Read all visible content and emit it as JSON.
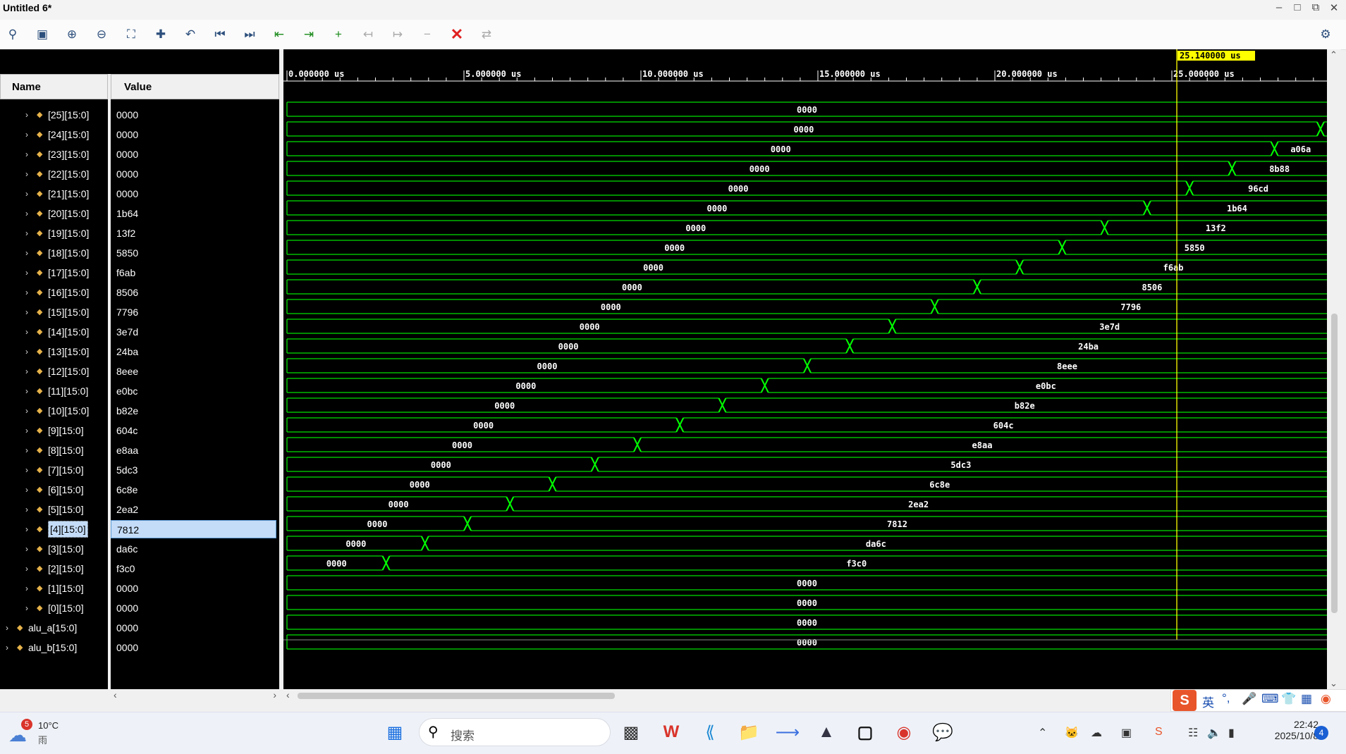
{
  "window": {
    "title": "Untitled 6*",
    "min_icon": "minimize-icon",
    "max_icon": "maximize-icon",
    "restore_icon": "restore-icon",
    "close_icon": "close-icon"
  },
  "toolbar": {
    "icons": [
      "search-icon",
      "save-icon",
      "zoom-in-icon",
      "zoom-out-icon",
      "zoom-fit-icon",
      "zoom-to-cursor-icon",
      "go-to-time-0-icon",
      "go-to-first-icon",
      "go-to-last-icon",
      "previous-transition-icon",
      "next-transition-icon",
      "add-marker-icon",
      "previous-marker-icon",
      "next-marker-icon",
      "delete-marker-icon",
      "remove-all-markers-icon",
      "swap-cursor-icon"
    ],
    "settings_icon": "gear-icon"
  },
  "columns": {
    "name": "Name",
    "value": "Value"
  },
  "cursor": {
    "time_label": "25.140000 us",
    "time_us": 25.14,
    "color": "#ffff00"
  },
  "time_axis": {
    "range_us": [
      0,
      29.5
    ],
    "ticks": [
      "0.000000 us",
      "5.000000 us",
      "10.000000 us",
      "15.000000 us",
      "20.000000 us",
      "25.000000 us"
    ],
    "tick_values_us": [
      0,
      5,
      10,
      15,
      20,
      25
    ]
  },
  "signals": [
    {
      "name": "[25][15:0]",
      "value": "0000",
      "indent": 1,
      "segments": [
        {
          "value": "0000",
          "start_us": 0,
          "end_us": 29.5
        }
      ]
    },
    {
      "name": "[24][15:0]",
      "value": "0000",
      "indent": 1,
      "segments": [
        {
          "value": "0000",
          "start_us": 0,
          "end_us": 29.2
        },
        {
          "value": "",
          "start_us": 29.2,
          "end_us": 29.5
        }
      ]
    },
    {
      "name": "[23][15:0]",
      "value": "0000",
      "indent": 1,
      "segments": [
        {
          "value": "0000",
          "start_us": 0,
          "end_us": 27.9
        },
        {
          "value": "a06a",
          "start_us": 27.9,
          "end_us": 29.5
        }
      ]
    },
    {
      "name": "[22][15:0]",
      "value": "0000",
      "indent": 1,
      "segments": [
        {
          "value": "0000",
          "start_us": 0,
          "end_us": 26.7
        },
        {
          "value": "8b88",
          "start_us": 26.7,
          "end_us": 29.5
        }
      ]
    },
    {
      "name": "[21][15:0]",
      "value": "0000",
      "indent": 1,
      "segments": [
        {
          "value": "0000",
          "start_us": 0,
          "end_us": 25.5
        },
        {
          "value": "96cd",
          "start_us": 25.5,
          "end_us": 29.5
        }
      ]
    },
    {
      "name": "[20][15:0]",
      "value": "1b64",
      "indent": 1,
      "segments": [
        {
          "value": "0000",
          "start_us": 0,
          "end_us": 24.3
        },
        {
          "value": "1b64",
          "start_us": 24.3,
          "end_us": 29.5
        }
      ]
    },
    {
      "name": "[19][15:0]",
      "value": "13f2",
      "indent": 1,
      "segments": [
        {
          "value": "0000",
          "start_us": 0,
          "end_us": 23.1
        },
        {
          "value": "13f2",
          "start_us": 23.1,
          "end_us": 29.5
        }
      ]
    },
    {
      "name": "[18][15:0]",
      "value": "5850",
      "indent": 1,
      "segments": [
        {
          "value": "0000",
          "start_us": 0,
          "end_us": 21.9
        },
        {
          "value": "5850",
          "start_us": 21.9,
          "end_us": 29.5
        }
      ]
    },
    {
      "name": "[17][15:0]",
      "value": "f6ab",
      "indent": 1,
      "segments": [
        {
          "value": "0000",
          "start_us": 0,
          "end_us": 20.7
        },
        {
          "value": "f6ab",
          "start_us": 20.7,
          "end_us": 29.5
        }
      ]
    },
    {
      "name": "[16][15:0]",
      "value": "8506",
      "indent": 1,
      "segments": [
        {
          "value": "0000",
          "start_us": 0,
          "end_us": 19.5
        },
        {
          "value": "8506",
          "start_us": 19.5,
          "end_us": 29.5
        }
      ]
    },
    {
      "name": "[15][15:0]",
      "value": "7796",
      "indent": 1,
      "segments": [
        {
          "value": "0000",
          "start_us": 0,
          "end_us": 18.3
        },
        {
          "value": "7796",
          "start_us": 18.3,
          "end_us": 29.5
        }
      ]
    },
    {
      "name": "[14][15:0]",
      "value": "3e7d",
      "indent": 1,
      "segments": [
        {
          "value": "0000",
          "start_us": 0,
          "end_us": 17.1
        },
        {
          "value": "3e7d",
          "start_us": 17.1,
          "end_us": 29.5
        }
      ]
    },
    {
      "name": "[13][15:0]",
      "value": "24ba",
      "indent": 1,
      "segments": [
        {
          "value": "0000",
          "start_us": 0,
          "end_us": 15.9
        },
        {
          "value": "24ba",
          "start_us": 15.9,
          "end_us": 29.5
        }
      ]
    },
    {
      "name": "[12][15:0]",
      "value": "8eee",
      "indent": 1,
      "segments": [
        {
          "value": "0000",
          "start_us": 0,
          "end_us": 14.7
        },
        {
          "value": "8eee",
          "start_us": 14.7,
          "end_us": 29.5
        }
      ]
    },
    {
      "name": "[11][15:0]",
      "value": "e0bc",
      "indent": 1,
      "segments": [
        {
          "value": "0000",
          "start_us": 0,
          "end_us": 13.5
        },
        {
          "value": "e0bc",
          "start_us": 13.5,
          "end_us": 29.5
        }
      ]
    },
    {
      "name": "[10][15:0]",
      "value": "b82e",
      "indent": 1,
      "segments": [
        {
          "value": "0000",
          "start_us": 0,
          "end_us": 12.3
        },
        {
          "value": "b82e",
          "start_us": 12.3,
          "end_us": 29.5
        }
      ]
    },
    {
      "name": "[9][15:0]",
      "value": "604c",
      "indent": 1,
      "segments": [
        {
          "value": "0000",
          "start_us": 0,
          "end_us": 11.1
        },
        {
          "value": "604c",
          "start_us": 11.1,
          "end_us": 29.5
        }
      ]
    },
    {
      "name": "[8][15:0]",
      "value": "e8aa",
      "indent": 1,
      "segments": [
        {
          "value": "0000",
          "start_us": 0,
          "end_us": 9.9
        },
        {
          "value": "e8aa",
          "start_us": 9.9,
          "end_us": 29.5
        }
      ]
    },
    {
      "name": "[7][15:0]",
      "value": "5dc3",
      "indent": 1,
      "segments": [
        {
          "value": "0000",
          "start_us": 0,
          "end_us": 8.7
        },
        {
          "value": "5dc3",
          "start_us": 8.7,
          "end_us": 29.5
        }
      ]
    },
    {
      "name": "[6][15:0]",
      "value": "6c8e",
      "indent": 1,
      "segments": [
        {
          "value": "0000",
          "start_us": 0,
          "end_us": 7.5
        },
        {
          "value": "6c8e",
          "start_us": 7.5,
          "end_us": 29.5
        }
      ]
    },
    {
      "name": "[5][15:0]",
      "value": "2ea2",
      "indent": 1,
      "segments": [
        {
          "value": "0000",
          "start_us": 0,
          "end_us": 6.3
        },
        {
          "value": "2ea2",
          "start_us": 6.3,
          "end_us": 29.5
        }
      ]
    },
    {
      "name": "[4][15:0]",
      "value": "7812",
      "indent": 1,
      "selected": true,
      "segments": [
        {
          "value": "0000",
          "start_us": 0,
          "end_us": 5.1
        },
        {
          "value": "7812",
          "start_us": 5.1,
          "end_us": 29.5
        }
      ]
    },
    {
      "name": "[3][15:0]",
      "value": "da6c",
      "indent": 1,
      "segments": [
        {
          "value": "0000",
          "start_us": 0,
          "end_us": 3.9
        },
        {
          "value": "da6c",
          "start_us": 3.9,
          "end_us": 29.5
        }
      ]
    },
    {
      "name": "[2][15:0]",
      "value": "f3c0",
      "indent": 1,
      "segments": [
        {
          "value": "0000",
          "start_us": 0,
          "end_us": 2.8
        },
        {
          "value": "f3c0",
          "start_us": 2.8,
          "end_us": 29.5
        }
      ]
    },
    {
      "name": "[1][15:0]",
      "value": "0000",
      "indent": 1,
      "segments": [
        {
          "value": "0000",
          "start_us": 0,
          "end_us": 29.5
        }
      ]
    },
    {
      "name": "[0][15:0]",
      "value": "0000",
      "indent": 1,
      "segments": [
        {
          "value": "0000",
          "start_us": 0,
          "end_us": 29.5
        }
      ]
    },
    {
      "name": "alu_a[15:0]",
      "value": "0000",
      "indent": 0,
      "segments": [
        {
          "value": "0000",
          "start_us": 0,
          "end_us": 29.5
        }
      ]
    },
    {
      "name": "alu_b[15:0]",
      "value": "0000",
      "indent": 0,
      "segments": [
        {
          "value": "0000",
          "start_us": 0,
          "end_us": 29.5
        }
      ]
    }
  ],
  "colors": {
    "wave": "#00e000",
    "wave_transition": "#00ff00",
    "cursor": "#ffff00",
    "selected_row": "#c4dcf7"
  },
  "taskbar": {
    "weather": {
      "temp": "10°C",
      "cond": "雨",
      "badge": "5"
    },
    "search_placeholder": "搜索",
    "apps": [
      "windows-start-icon",
      "task-view-icon",
      "wps-icon",
      "vscode-icon",
      "file-explorer-icon",
      "feishu-icon",
      "app-icon",
      "vivado-icon",
      "chrome-icon",
      "wechat-icon"
    ],
    "clock": {
      "time": "22:42",
      "date": "2025/10/8"
    },
    "notification_count": "4",
    "ime_lang": "英"
  }
}
